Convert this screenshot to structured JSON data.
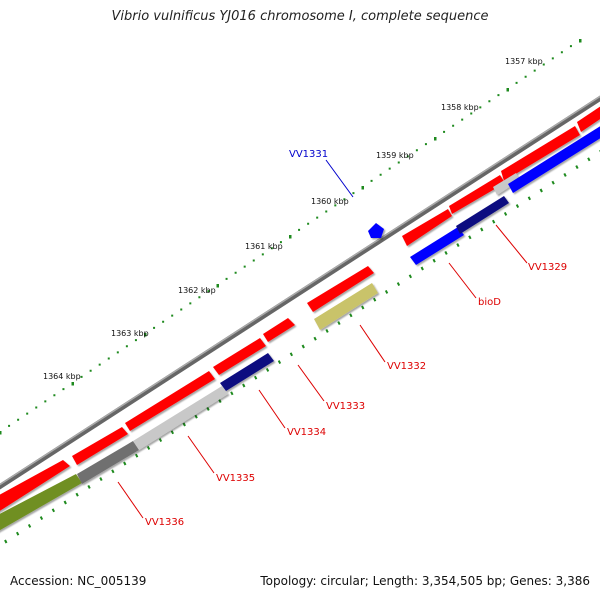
{
  "title": "Vibrio vulnificus YJ016 chromosome I, complete sequence",
  "footer": {
    "accession": "Accession: NC_005139",
    "summary": "Topology: circular; Length: 3,354,505 bp; Genes: 3,386"
  },
  "colors": {
    "backbone": "#777777",
    "cds_red": "#ff0000",
    "cds_blue": "#0000ff",
    "navy": "#101080",
    "gray_light": "#c8c8c8",
    "gray_dark": "#707070",
    "olive": "#6f8f22",
    "khaki": "#c9c36a",
    "ticks": "#1e8a1e",
    "label_red": "#dd0000",
    "label_blue": "#0000cc"
  },
  "scale_labels": [
    "1357 kbp",
    "1358 kbp",
    "1359 kbp",
    "1360 kbp",
    "1361 kbp",
    "1362 kbp",
    "1363 kbp",
    "1364 kbp"
  ],
  "gene_labels": [
    {
      "name": "VV1331",
      "strand": "blue"
    },
    {
      "name": "VV1329",
      "strand": "red"
    },
    {
      "name": "bioD",
      "strand": "red"
    },
    {
      "name": "VV1332",
      "strand": "red"
    },
    {
      "name": "VV1333",
      "strand": "red"
    },
    {
      "name": "VV1334",
      "strand": "red"
    },
    {
      "name": "VV1335",
      "strand": "red"
    },
    {
      "name": "VV1336",
      "strand": "red"
    }
  ]
}
